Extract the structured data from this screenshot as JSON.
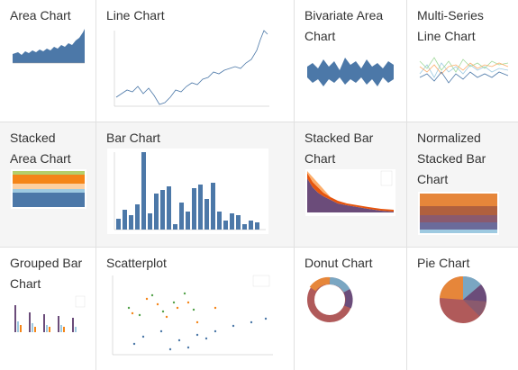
{
  "gallery": {
    "cells": [
      {
        "id": "area",
        "title": "Area Chart"
      },
      {
        "id": "line",
        "title": "Line Chart"
      },
      {
        "id": "bivariate",
        "title": "Bivariate Area\nChart"
      },
      {
        "id": "multiline",
        "title": "Multi-Series\nLine Chart"
      },
      {
        "id": "stackedarea",
        "title": "Stacked\nArea Chart"
      },
      {
        "id": "bar",
        "title": "Bar Chart"
      },
      {
        "id": "stackedbar",
        "title": "Stacked Bar\nChart"
      },
      {
        "id": "normbar",
        "title": "Normalized\nStacked Bar\nChart"
      },
      {
        "id": "groupedbar",
        "title": "Grouped Bar\nChart"
      },
      {
        "id": "scatter",
        "title": "Scatterplot"
      },
      {
        "id": "donut",
        "title": "Donut Chart"
      },
      {
        "id": "pie",
        "title": "Pie Chart"
      }
    ]
  },
  "colors": {
    "blue": "#4c78a8",
    "orange": "#f58518",
    "grid_line": "#e1e1e1",
    "shade": "#f5f5f5",
    "text": "#333333",
    "purple": "#6b4c7a",
    "teal": "#7aa6c2"
  }
}
